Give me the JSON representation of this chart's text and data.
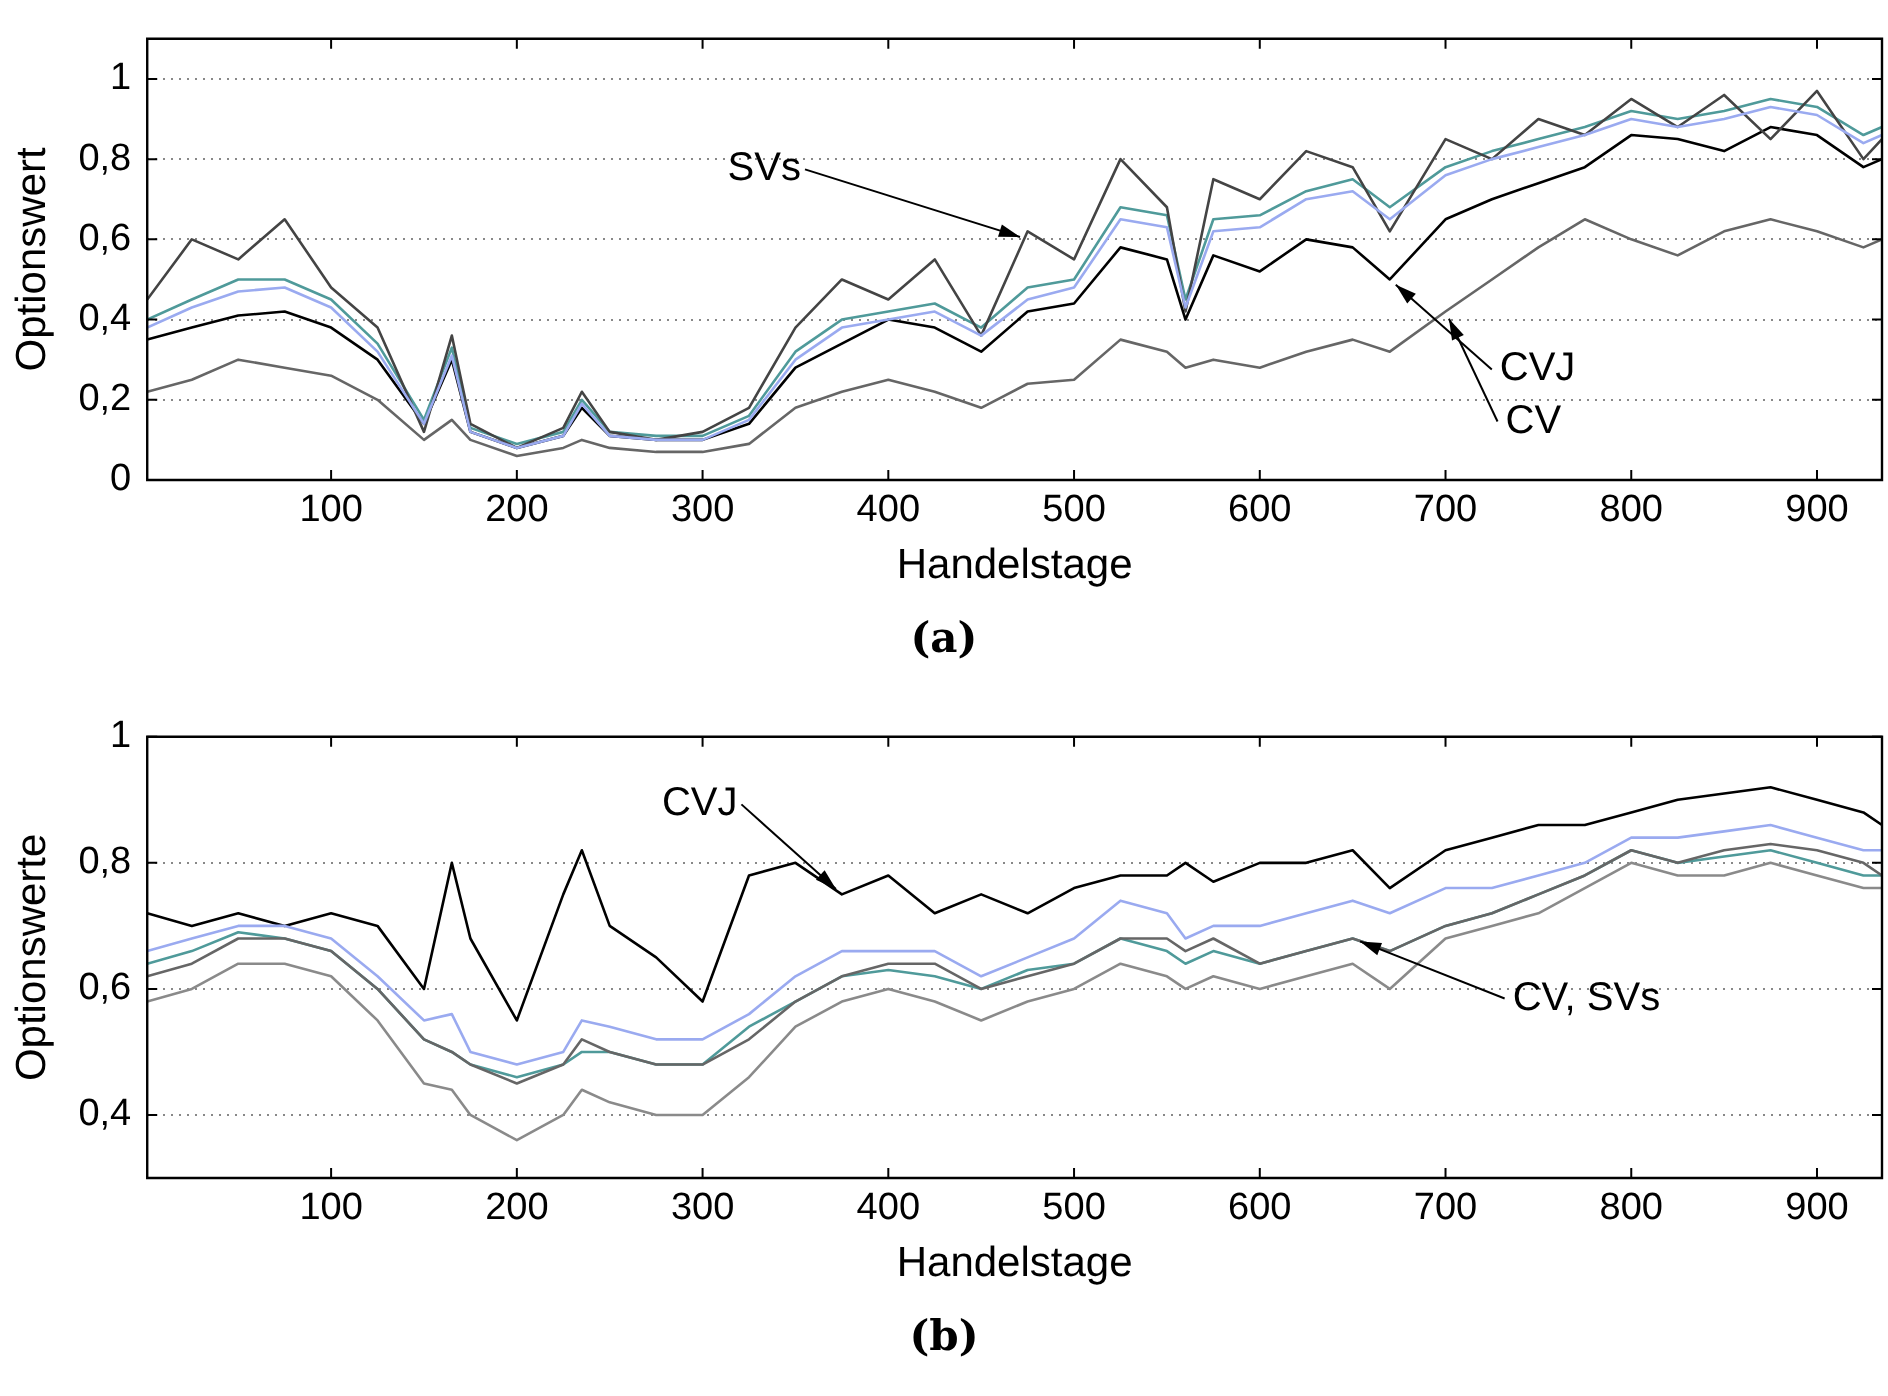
{
  "chart_data": [
    {
      "type": "line",
      "xlabel": "Handelstage",
      "ylabel": "Optionswert",
      "xlim": [
        1,
        935
      ],
      "xticks": [
        100,
        200,
        300,
        400,
        500,
        600,
        700,
        800,
        900
      ],
      "ylim": [
        0,
        1.1
      ],
      "yticks": [
        {
          "value": 0,
          "label": "0"
        },
        {
          "value": 0.2,
          "label": "0,2"
        },
        {
          "value": 0.4,
          "label": "0,4"
        },
        {
          "value": 0.6,
          "label": "0,6"
        },
        {
          "value": 0.8,
          "label": "0,8"
        },
        {
          "value": 1,
          "label": "1"
        }
      ],
      "grid": "y",
      "x": [
        1,
        25,
        50,
        75,
        100,
        125,
        150,
        165,
        175,
        200,
        225,
        235,
        250,
        275,
        300,
        325,
        350,
        375,
        400,
        425,
        450,
        475,
        500,
        525,
        550,
        560,
        575,
        600,
        625,
        650,
        670,
        700,
        725,
        750,
        775,
        800,
        825,
        850,
        875,
        900,
        925,
        935
      ],
      "series": [
        {
          "color": "#9aaaf0",
          "values": [
            0.38,
            0.43,
            0.47,
            0.48,
            0.43,
            0.32,
            0.14,
            0.31,
            0.12,
            0.08,
            0.11,
            0.19,
            0.11,
            0.1,
            0.1,
            0.15,
            0.3,
            0.38,
            0.4,
            0.42,
            0.36,
            0.45,
            0.48,
            0.65,
            0.63,
            0.43,
            0.62,
            0.63,
            0.7,
            0.72,
            0.65,
            0.76,
            0.8,
            0.83,
            0.86,
            0.9,
            0.88,
            0.9,
            0.93,
            0.91,
            0.84,
            0.86
          ]
        },
        {
          "color": "#444444",
          "values": [
            0.45,
            0.6,
            0.55,
            0.65,
            0.48,
            0.38,
            0.12,
            0.36,
            0.14,
            0.08,
            0.13,
            0.22,
            0.12,
            0.1,
            0.12,
            0.18,
            0.38,
            0.5,
            0.45,
            0.55,
            0.36,
            0.62,
            0.55,
            0.8,
            0.68,
            0.42,
            0.75,
            0.7,
            0.82,
            0.78,
            0.62,
            0.85,
            0.8,
            0.9,
            0.86,
            0.95,
            0.88,
            0.96,
            0.85,
            0.97,
            0.8,
            0.85
          ]
        },
        {
          "color": "#4f9a9a",
          "values": [
            0.4,
            0.45,
            0.5,
            0.5,
            0.45,
            0.34,
            0.15,
            0.33,
            0.13,
            0.09,
            0.12,
            0.2,
            0.12,
            0.11,
            0.11,
            0.16,
            0.32,
            0.4,
            0.42,
            0.44,
            0.38,
            0.48,
            0.5,
            0.68,
            0.66,
            0.45,
            0.65,
            0.66,
            0.72,
            0.75,
            0.68,
            0.78,
            0.82,
            0.85,
            0.88,
            0.92,
            0.9,
            0.92,
            0.95,
            0.93,
            0.86,
            0.88
          ]
        },
        {
          "color": "#666666",
          "values": [
            0.22,
            0.25,
            0.3,
            0.28,
            0.26,
            0.2,
            0.1,
            0.15,
            0.1,
            0.06,
            0.08,
            0.1,
            0.08,
            0.07,
            0.07,
            0.09,
            0.18,
            0.22,
            0.25,
            0.22,
            0.18,
            0.24,
            0.25,
            0.35,
            0.32,
            0.28,
            0.3,
            0.28,
            0.32,
            0.35,
            0.32,
            0.42,
            0.5,
            0.58,
            0.65,
            0.6,
            0.56,
            0.62,
            0.65,
            0.62,
            0.58,
            0.6
          ]
        },
        {
          "color": "#000000",
          "values": [
            0.35,
            0.38,
            0.41,
            0.42,
            0.38,
            0.3,
            0.14,
            0.3,
            0.12,
            0.08,
            0.11,
            0.18,
            0.11,
            0.1,
            0.1,
            0.14,
            0.28,
            0.34,
            0.4,
            0.38,
            0.32,
            0.42,
            0.44,
            0.58,
            0.55,
            0.4,
            0.56,
            0.52,
            0.6,
            0.58,
            0.5,
            0.65,
            0.7,
            0.74,
            0.78,
            0.86,
            0.85,
            0.82,
            0.88,
            0.86,
            0.78,
            0.8
          ]
        }
      ],
      "annotations": [
        {
          "text": "SVs",
          "x": 475,
          "y": 0.6
        },
        {
          "text": "CVJ",
          "x": 670,
          "y": 0.5
        },
        {
          "text": "CV",
          "x": 700,
          "y": 0.42
        },
        "(a)"
      ]
    },
    {
      "type": "line",
      "xlabel": "Handelstage",
      "ylabel": "Optionswerte",
      "xlim": [
        1,
        935
      ],
      "xticks": [
        100,
        200,
        300,
        400,
        500,
        600,
        700,
        800,
        900
      ],
      "ylim": [
        0.3,
        1
      ],
      "yticks": [
        {
          "value": 0.4,
          "label": "0,4"
        },
        {
          "value": 0.6,
          "label": "0,6"
        },
        {
          "value": 0.8,
          "label": "0,8"
        },
        {
          "value": 1,
          "label": "1"
        }
      ],
      "grid": "y",
      "x": [
        1,
        25,
        50,
        75,
        100,
        125,
        150,
        165,
        175,
        200,
        225,
        235,
        250,
        275,
        300,
        325,
        350,
        375,
        400,
        425,
        450,
        475,
        500,
        525,
        550,
        560,
        575,
        600,
        625,
        650,
        670,
        700,
        725,
        750,
        775,
        800,
        825,
        850,
        875,
        900,
        925,
        935
      ],
      "series": [
        {
          "color": "#8a8a8a",
          "values": [
            0.58,
            0.6,
            0.64,
            0.64,
            0.62,
            0.55,
            0.45,
            0.44,
            0.4,
            0.36,
            0.4,
            0.44,
            0.42,
            0.4,
            0.4,
            0.46,
            0.54,
            0.58,
            0.6,
            0.58,
            0.55,
            0.58,
            0.6,
            0.64,
            0.62,
            0.6,
            0.62,
            0.6,
            0.62,
            0.64,
            0.6,
            0.68,
            0.7,
            0.72,
            0.76,
            0.8,
            0.78,
            0.78,
            0.8,
            0.78,
            0.76,
            0.76
          ]
        },
        {
          "color": "#9aaaf0",
          "values": [
            0.66,
            0.68,
            0.7,
            0.7,
            0.68,
            0.62,
            0.55,
            0.56,
            0.5,
            0.48,
            0.5,
            0.55,
            0.54,
            0.52,
            0.52,
            0.56,
            0.62,
            0.66,
            0.66,
            0.66,
            0.62,
            0.65,
            0.68,
            0.74,
            0.72,
            0.68,
            0.7,
            0.7,
            0.72,
            0.74,
            0.72,
            0.76,
            0.76,
            0.78,
            0.8,
            0.84,
            0.84,
            0.85,
            0.86,
            0.84,
            0.82,
            0.82
          ]
        },
        {
          "color": "#666666",
          "values": [
            0.62,
            0.64,
            0.68,
            0.68,
            0.66,
            0.6,
            0.52,
            0.5,
            0.48,
            0.45,
            0.48,
            0.52,
            0.5,
            0.48,
            0.48,
            0.52,
            0.58,
            0.62,
            0.64,
            0.64,
            0.6,
            0.62,
            0.64,
            0.68,
            0.68,
            0.66,
            0.68,
            0.64,
            0.66,
            0.68,
            0.66,
            0.7,
            0.72,
            0.75,
            0.78,
            0.82,
            0.8,
            0.82,
            0.83,
            0.82,
            0.8,
            0.78
          ]
        },
        {
          "color": "#4f9a9a",
          "values": [
            0.64,
            0.66,
            0.69,
            0.68,
            0.66,
            0.6,
            0.52,
            0.5,
            0.48,
            0.46,
            0.48,
            0.5,
            0.5,
            0.48,
            0.48,
            0.54,
            0.58,
            0.62,
            0.63,
            0.62,
            0.6,
            0.63,
            0.64,
            0.68,
            0.66,
            0.64,
            0.66,
            0.64,
            0.66,
            0.68,
            0.66,
            0.7,
            0.72,
            0.75,
            0.78,
            0.82,
            0.8,
            0.81,
            0.82,
            0.8,
            0.78,
            0.78
          ]
        },
        {
          "color": "#000000",
          "values": [
            0.72,
            0.7,
            0.72,
            0.7,
            0.72,
            0.7,
            0.6,
            0.8,
            0.68,
            0.55,
            0.75,
            0.82,
            0.7,
            0.65,
            0.58,
            0.78,
            0.8,
            0.75,
            0.78,
            0.72,
            0.75,
            0.72,
            0.76,
            0.78,
            0.78,
            0.8,
            0.77,
            0.8,
            0.8,
            0.82,
            0.76,
            0.82,
            0.84,
            0.86,
            0.86,
            0.88,
            0.9,
            0.91,
            0.92,
            0.9,
            0.88,
            0.86
          ]
        }
      ],
      "annotations": [
        {
          "text": "CVJ",
          "x": 375,
          "y": 0.75
        },
        {
          "text": "CV, SVs",
          "x": 650,
          "y": 0.68
        },
        "(b)"
      ]
    }
  ]
}
